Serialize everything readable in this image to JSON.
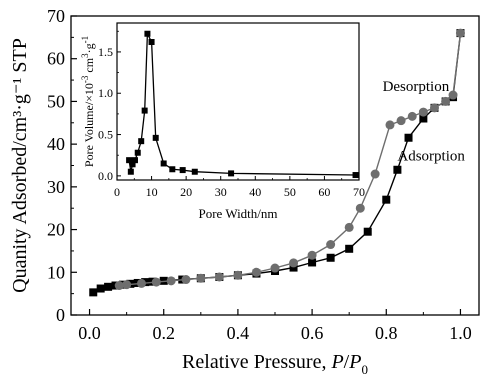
{
  "chart_data": [
    {
      "id": "main",
      "type": "scatter",
      "title": "",
      "xlabel_main": "Relative Pressure, ",
      "xlabel_italic": "P",
      "xlabel_slash": "/",
      "xlabel_italic2": "P",
      "xlabel_sub": "0",
      "ylabel": "Quanity Adsorbed/cm³·g⁻¹ STP",
      "xlim": [
        -0.05,
        1.05
      ],
      "ylim": [
        0,
        70
      ],
      "xticks": [
        "0.0",
        "0.2",
        "0.4",
        "0.6",
        "0.8",
        "1.0"
      ],
      "xtick_values": [
        0.0,
        0.2,
        0.4,
        0.6,
        0.8,
        1.0
      ],
      "yticks": [
        "0",
        "10",
        "20",
        "30",
        "40",
        "50",
        "60",
        "70"
      ],
      "ytick_values": [
        0,
        10,
        20,
        30,
        40,
        50,
        60,
        70
      ],
      "grid": false,
      "series": [
        {
          "name": "Adsorption",
          "marker": "square",
          "color": "#000000",
          "x": [
            0.01,
            0.03,
            0.05,
            0.07,
            0.09,
            0.11,
            0.13,
            0.15,
            0.17,
            0.2,
            0.25,
            0.3,
            0.35,
            0.4,
            0.45,
            0.5,
            0.55,
            0.6,
            0.65,
            0.7,
            0.75,
            0.8,
            0.83,
            0.86,
            0.9,
            0.93,
            0.96,
            0.98,
            1.0
          ],
          "y": [
            5.3,
            6.2,
            6.6,
            6.9,
            7.1,
            7.3,
            7.5,
            7.7,
            7.8,
            8.0,
            8.3,
            8.6,
            8.9,
            9.3,
            9.7,
            10.3,
            11.1,
            12.3,
            13.4,
            15.5,
            19.5,
            27.0,
            34.0,
            41.5,
            46.0,
            48.5,
            50.0,
            51.0,
            66.0
          ]
        },
        {
          "name": "Desorption",
          "marker": "circle",
          "color": "#6e6e6e",
          "x": [
            1.0,
            0.98,
            0.96,
            0.93,
            0.9,
            0.87,
            0.84,
            0.81,
            0.77,
            0.73,
            0.7,
            0.65,
            0.6,
            0.55,
            0.5,
            0.45,
            0.4,
            0.35,
            0.3,
            0.26,
            0.22,
            0.18,
            0.14,
            0.1,
            0.08
          ],
          "y": [
            66.0,
            51.5,
            50.0,
            48.5,
            47.5,
            46.5,
            45.5,
            44.5,
            33.0,
            25.0,
            20.5,
            16.5,
            14.0,
            12.2,
            11.0,
            10.0,
            9.3,
            8.9,
            8.6,
            8.3,
            8.0,
            7.7,
            7.4,
            7.1,
            6.9
          ]
        }
      ],
      "annotations": [
        {
          "text": "Desorption",
          "x": 0.79,
          "y": 52.5
        },
        {
          "text": "Adsorption",
          "x": 0.83,
          "y": 36.2
        }
      ]
    },
    {
      "id": "inset",
      "type": "line",
      "title": "",
      "xlabel": "Pore Width/nm",
      "ylabel_pre": "Pore Volume/×10",
      "ylabel_exp1": "-3",
      "ylabel_mid": " cm",
      "ylabel_exp2": "3",
      "ylabel_post": "·g",
      "ylabel_exp3": "-1",
      "xlim": [
        0,
        70
      ],
      "ylim": [
        -0.05,
        1.85
      ],
      "xticks": [
        "0",
        "10",
        "20",
        "30",
        "40",
        "50",
        "60",
        "70"
      ],
      "xtick_values": [
        0,
        10,
        20,
        30,
        40,
        50,
        60,
        70
      ],
      "yticks": [
        "0.0",
        "0.5",
        "1.0",
        "1.5"
      ],
      "ytick_values": [
        0.0,
        0.5,
        1.0,
        1.5
      ],
      "grid": false,
      "series": [
        {
          "marker": "square",
          "color": "#000000",
          "x": [
            3.5,
            4.0,
            4.5,
            5.2,
            6.0,
            7.0,
            8.0,
            8.8,
            10.0,
            11.2,
            13.5,
            16.0,
            19.0,
            22.5,
            33.0,
            69.0
          ],
          "y": [
            0.19,
            0.05,
            0.14,
            0.19,
            0.28,
            0.42,
            0.79,
            1.72,
            1.62,
            0.46,
            0.15,
            0.08,
            0.07,
            0.05,
            0.03,
            0.01
          ]
        }
      ]
    }
  ]
}
